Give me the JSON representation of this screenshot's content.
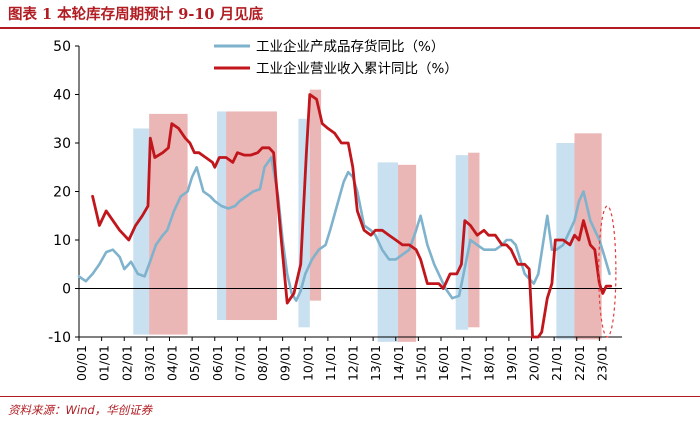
{
  "header": {
    "title": "图表 1    本轮库存周期预计 9-10 月见底"
  },
  "footer": {
    "source": "资料来源：Wind，华创证券"
  },
  "chart_data": {
    "type": "line",
    "ylim": [
      -10,
      50
    ],
    "yticks": [
      -10,
      0,
      10,
      20,
      30,
      40,
      50
    ],
    "x_tick_labels": [
      "00/01",
      "01/01",
      "02/01",
      "03/01",
      "04/01",
      "05/01",
      "06/01",
      "07/01",
      "08/01",
      "09/01",
      "10/01",
      "11/01",
      "12/01",
      "13/01",
      "14/01",
      "15/01",
      "16/01",
      "17/01",
      "18/01",
      "19/01",
      "20/01",
      "21/01",
      "22/01",
      "23/01"
    ],
    "x_domain": [
      2000.0,
      2024.0
    ],
    "colors": {
      "inventory": "#7fb2cc",
      "revenue": "#c0161c",
      "band_blue": "#bcd8ec",
      "band_red": "#e8a9a9",
      "ellipse": "#e23a3a"
    },
    "series": [
      {
        "name": "工业企业产成品存货同比（%）",
        "color": "#7fb2cc",
        "points": [
          [
            2000.0,
            2.5
          ],
          [
            2000.3,
            1.5
          ],
          [
            2000.6,
            3
          ],
          [
            2000.9,
            5
          ],
          [
            2001.2,
            7.5
          ],
          [
            2001.5,
            8
          ],
          [
            2001.8,
            6.5
          ],
          [
            2002.0,
            4
          ],
          [
            2002.3,
            5.5
          ],
          [
            2002.6,
            3
          ],
          [
            2002.9,
            2.5
          ],
          [
            2003.1,
            5
          ],
          [
            2003.4,
            9
          ],
          [
            2003.7,
            11
          ],
          [
            2003.9,
            12
          ],
          [
            2004.2,
            16
          ],
          [
            2004.5,
            19
          ],
          [
            2004.8,
            20
          ],
          [
            2005.0,
            23
          ],
          [
            2005.2,
            25
          ],
          [
            2005.5,
            20
          ],
          [
            2005.8,
            19
          ],
          [
            2006.0,
            18
          ],
          [
            2006.3,
            17
          ],
          [
            2006.6,
            16.5
          ],
          [
            2006.9,
            17
          ],
          [
            2007.1,
            18
          ],
          [
            2007.4,
            19
          ],
          [
            2007.7,
            20
          ],
          [
            2008.0,
            20.5
          ],
          [
            2008.2,
            25
          ],
          [
            2008.5,
            27
          ],
          [
            2008.8,
            19
          ],
          [
            2009.0,
            10
          ],
          [
            2009.2,
            3
          ],
          [
            2009.4,
            -1
          ],
          [
            2009.6,
            -2.5
          ],
          [
            2009.8,
            -0.5
          ],
          [
            2010.0,
            3
          ],
          [
            2010.3,
            6
          ],
          [
            2010.6,
            8
          ],
          [
            2010.9,
            9
          ],
          [
            2011.1,
            12
          ],
          [
            2011.4,
            17
          ],
          [
            2011.7,
            22
          ],
          [
            2011.9,
            24
          ],
          [
            2012.1,
            23
          ],
          [
            2012.3,
            20
          ],
          [
            2012.6,
            13
          ],
          [
            2012.9,
            12
          ],
          [
            2013.1,
            11
          ],
          [
            2013.4,
            8
          ],
          [
            2013.7,
            6
          ],
          [
            2014.0,
            6
          ],
          [
            2014.3,
            7
          ],
          [
            2014.6,
            8
          ],
          [
            2014.9,
            12
          ],
          [
            2015.1,
            15
          ],
          [
            2015.4,
            9
          ],
          [
            2015.7,
            5
          ],
          [
            2015.9,
            3
          ],
          [
            2016.2,
            0
          ],
          [
            2016.5,
            -2
          ],
          [
            2016.8,
            -1.5
          ],
          [
            2017.0,
            3
          ],
          [
            2017.3,
            10
          ],
          [
            2017.6,
            9
          ],
          [
            2017.9,
            8
          ],
          [
            2018.1,
            8
          ],
          [
            2018.4,
            8
          ],
          [
            2018.7,
            9
          ],
          [
            2018.9,
            10
          ],
          [
            2019.1,
            10
          ],
          [
            2019.3,
            9
          ],
          [
            2019.5,
            6
          ],
          [
            2019.7,
            3
          ],
          [
            2019.9,
            2
          ],
          [
            2020.1,
            1
          ],
          [
            2020.3,
            3
          ],
          [
            2020.5,
            9
          ],
          [
            2020.7,
            15
          ],
          [
            2020.9,
            8
          ],
          [
            2021.1,
            8
          ],
          [
            2021.4,
            9
          ],
          [
            2021.7,
            12
          ],
          [
            2021.9,
            14
          ],
          [
            2022.1,
            18
          ],
          [
            2022.3,
            20
          ],
          [
            2022.6,
            14
          ],
          [
            2022.8,
            12
          ],
          [
            2023.0,
            10
          ],
          [
            2023.2,
            7
          ],
          [
            2023.45,
            3
          ]
        ]
      },
      {
        "name": "工业企业营业收入累计同比（%）",
        "color": "#c0161c",
        "points": [
          [
            2000.6,
            19
          ],
          [
            2000.9,
            13
          ],
          [
            2001.2,
            16
          ],
          [
            2001.5,
            14
          ],
          [
            2001.8,
            12
          ],
          [
            2002.0,
            11
          ],
          [
            2002.2,
            10
          ],
          [
            2002.5,
            13
          ],
          [
            2002.8,
            15
          ],
          [
            2003.05,
            17
          ],
          [
            2003.15,
            31
          ],
          [
            2003.35,
            27
          ],
          [
            2003.7,
            28
          ],
          [
            2003.95,
            29
          ],
          [
            2004.1,
            34
          ],
          [
            2004.4,
            33
          ],
          [
            2004.7,
            31
          ],
          [
            2004.9,
            30
          ],
          [
            2005.1,
            28
          ],
          [
            2005.3,
            28
          ],
          [
            2005.6,
            27
          ],
          [
            2005.9,
            26
          ],
          [
            2006.0,
            25
          ],
          [
            2006.2,
            27
          ],
          [
            2006.5,
            27
          ],
          [
            2006.8,
            26
          ],
          [
            2007.0,
            28
          ],
          [
            2007.3,
            27.5
          ],
          [
            2007.6,
            27.5
          ],
          [
            2007.9,
            28
          ],
          [
            2008.1,
            29
          ],
          [
            2008.4,
            29
          ],
          [
            2008.6,
            28
          ],
          [
            2008.9,
            12
          ],
          [
            2009.2,
            -3
          ],
          [
            2009.5,
            -1
          ],
          [
            2009.8,
            5
          ],
          [
            2010.05,
            28
          ],
          [
            2010.2,
            40
          ],
          [
            2010.5,
            39
          ],
          [
            2010.75,
            34
          ],
          [
            2011.0,
            33
          ],
          [
            2011.3,
            32
          ],
          [
            2011.6,
            30
          ],
          [
            2011.9,
            30
          ],
          [
            2012.1,
            25
          ],
          [
            2012.3,
            16
          ],
          [
            2012.6,
            12
          ],
          [
            2012.9,
            11
          ],
          [
            2013.1,
            12
          ],
          [
            2013.4,
            12
          ],
          [
            2013.7,
            11
          ],
          [
            2014.0,
            10
          ],
          [
            2014.3,
            9
          ],
          [
            2014.6,
            9
          ],
          [
            2014.9,
            8
          ],
          [
            2015.1,
            6
          ],
          [
            2015.4,
            1
          ],
          [
            2015.7,
            1
          ],
          [
            2015.9,
            1
          ],
          [
            2016.1,
            0
          ],
          [
            2016.4,
            3
          ],
          [
            2016.7,
            3
          ],
          [
            2016.9,
            5
          ],
          [
            2017.05,
            14
          ],
          [
            2017.3,
            13
          ],
          [
            2017.6,
            11
          ],
          [
            2017.9,
            12
          ],
          [
            2018.1,
            11
          ],
          [
            2018.4,
            11
          ],
          [
            2018.7,
            9
          ],
          [
            2018.9,
            9
          ],
          [
            2019.1,
            8
          ],
          [
            2019.4,
            5
          ],
          [
            2019.7,
            5
          ],
          [
            2019.9,
            4
          ],
          [
            2020.05,
            -10
          ],
          [
            2020.3,
            -10
          ],
          [
            2020.45,
            -9
          ],
          [
            2020.7,
            -2
          ],
          [
            2020.9,
            1
          ],
          [
            2021.05,
            10
          ],
          [
            2021.4,
            10
          ],
          [
            2021.7,
            9
          ],
          [
            2021.9,
            11
          ],
          [
            2022.1,
            10
          ],
          [
            2022.3,
            14
          ],
          [
            2022.6,
            9
          ],
          [
            2022.8,
            8
          ],
          [
            2023.0,
            1
          ],
          [
            2023.15,
            -1
          ],
          [
            2023.3,
            0.5
          ],
          [
            2023.5,
            0.5
          ]
        ]
      }
    ],
    "bands": [
      {
        "color": "blue",
        "from": 2002.4,
        "to": 2003.1,
        "y_from": -9.5,
        "y_to": 33
      },
      {
        "color": "red",
        "from": 2003.1,
        "to": 2004.8,
        "y_from": -9.5,
        "y_to": 36
      },
      {
        "color": "blue",
        "from": 2006.1,
        "to": 2006.5,
        "y_from": -6.5,
        "y_to": 36.5
      },
      {
        "color": "red",
        "from": 2006.5,
        "to": 2008.75,
        "y_from": -6.5,
        "y_to": 36.5
      },
      {
        "color": "blue",
        "from": 2009.7,
        "to": 2010.2,
        "y_from": -8,
        "y_to": 35
      },
      {
        "color": "red",
        "from": 2010.2,
        "to": 2010.7,
        "y_from": -2.5,
        "y_to": 41
      },
      {
        "color": "blue",
        "from": 2013.2,
        "to": 2014.1,
        "y_from": -11,
        "y_to": 26
      },
      {
        "color": "red",
        "from": 2014.1,
        "to": 2014.9,
        "y_from": -11,
        "y_to": 25.5
      },
      {
        "color": "blue",
        "from": 2016.65,
        "to": 2017.2,
        "y_from": -8.5,
        "y_to": 27.5
      },
      {
        "color": "red",
        "from": 2017.2,
        "to": 2017.7,
        "y_from": -8,
        "y_to": 28
      },
      {
        "color": "blue",
        "from": 2021.1,
        "to": 2021.9,
        "y_from": -10.5,
        "y_to": 30
      },
      {
        "color": "red",
        "from": 2021.9,
        "to": 2023.1,
        "y_from": -10.5,
        "y_to": 32
      }
    ],
    "highlight_ellipse": {
      "cx": 2023.35,
      "cy": 3.5,
      "rx_years": 0.38,
      "ry": 13.5
    },
    "grid": false,
    "legend_position": "top"
  }
}
